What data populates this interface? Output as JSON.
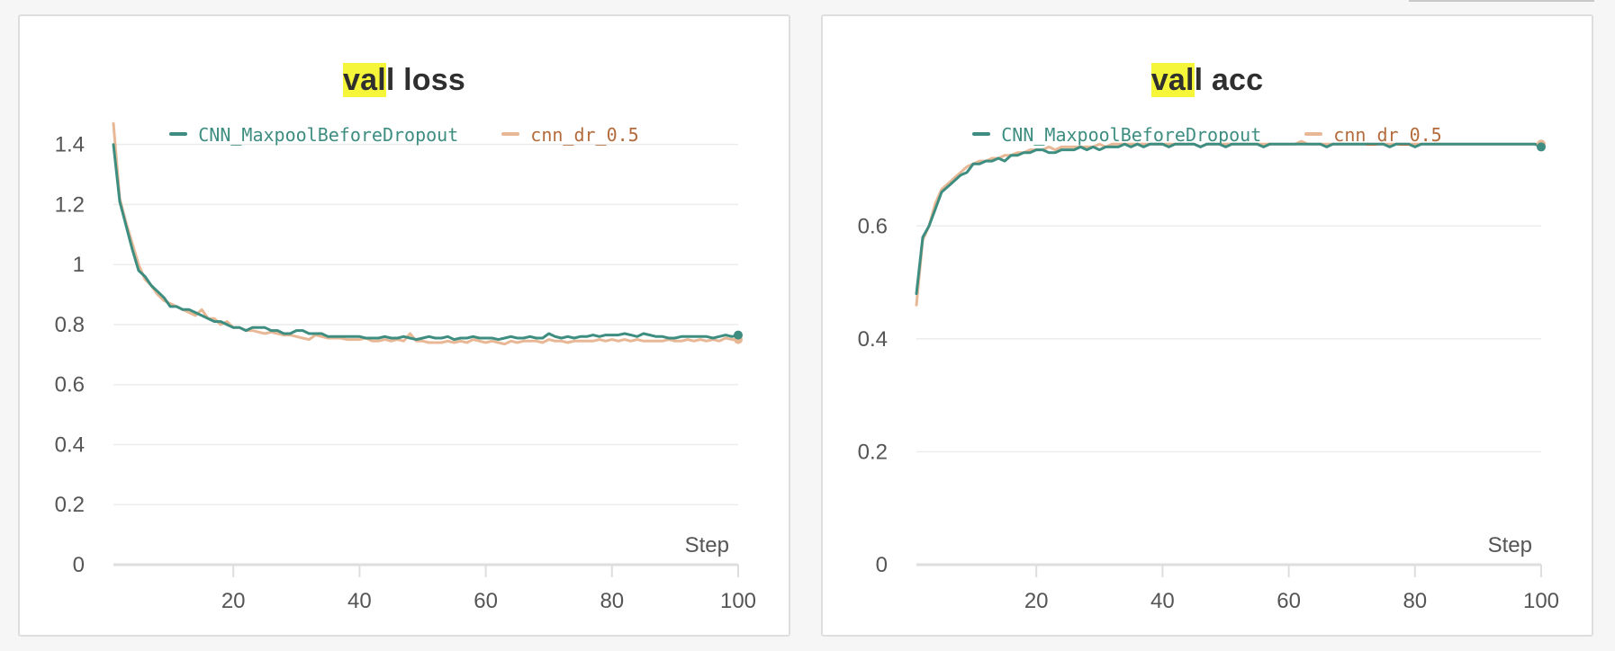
{
  "colors": {
    "series_a": "#3d8d80",
    "series_b": "#e8b896",
    "series_b_text": "#b36b3c",
    "grid": "#ececec",
    "axis": "#dedede"
  },
  "chart_data": [
    {
      "type": "line",
      "title_highlight": "val",
      "title_rest": "l loss",
      "xlabel": "Step",
      "ylabel": "",
      "xlim": [
        1,
        100
      ],
      "ylim": [
        0,
        1.42
      ],
      "x_ticks": [
        20,
        40,
        60,
        80,
        100
      ],
      "y_ticks": [
        0,
        0.2,
        0.4,
        0.6,
        0.8,
        1,
        1.2,
        1.4
      ],
      "y_tick_labels": [
        "0",
        "0.2",
        "0.4",
        "0.6",
        "0.8",
        "1",
        "1.2",
        "1.4"
      ],
      "grid": true,
      "legend": "top-center",
      "x": [
        1,
        2,
        3,
        4,
        5,
        6,
        7,
        8,
        9,
        10,
        11,
        12,
        13,
        14,
        15,
        16,
        17,
        18,
        19,
        20,
        21,
        22,
        23,
        24,
        25,
        26,
        27,
        28,
        29,
        30,
        31,
        32,
        33,
        34,
        35,
        36,
        37,
        38,
        39,
        40,
        41,
        42,
        43,
        44,
        45,
        46,
        47,
        48,
        49,
        50,
        51,
        52,
        53,
        54,
        55,
        56,
        57,
        58,
        59,
        60,
        61,
        62,
        63,
        64,
        65,
        66,
        67,
        68,
        69,
        70,
        71,
        72,
        73,
        74,
        75,
        76,
        77,
        78,
        79,
        80,
        81,
        82,
        83,
        84,
        85,
        86,
        87,
        88,
        89,
        90,
        91,
        92,
        93,
        94,
        95,
        96,
        97,
        98,
        99,
        100
      ],
      "series": [
        {
          "name": "CNN_MaxpoolBeforeDropout",
          "values": [
            1.4,
            1.21,
            1.13,
            1.05,
            0.98,
            0.96,
            0.93,
            0.91,
            0.89,
            0.86,
            0.86,
            0.85,
            0.85,
            0.84,
            0.83,
            0.82,
            0.81,
            0.81,
            0.8,
            0.79,
            0.79,
            0.78,
            0.79,
            0.79,
            0.79,
            0.78,
            0.78,
            0.77,
            0.77,
            0.78,
            0.78,
            0.77,
            0.77,
            0.77,
            0.76,
            0.76,
            0.76,
            0.76,
            0.76,
            0.76,
            0.755,
            0.755,
            0.755,
            0.76,
            0.755,
            0.755,
            0.76,
            0.755,
            0.75,
            0.755,
            0.76,
            0.755,
            0.755,
            0.76,
            0.75,
            0.755,
            0.755,
            0.76,
            0.755,
            0.755,
            0.755,
            0.75,
            0.755,
            0.76,
            0.755,
            0.755,
            0.76,
            0.755,
            0.755,
            0.77,
            0.76,
            0.755,
            0.76,
            0.755,
            0.76,
            0.76,
            0.765,
            0.76,
            0.765,
            0.765,
            0.765,
            0.77,
            0.765,
            0.76,
            0.77,
            0.765,
            0.76,
            0.76,
            0.755,
            0.755,
            0.76,
            0.76,
            0.76,
            0.76,
            0.76,
            0.755,
            0.76,
            0.765,
            0.76,
            0.765
          ]
        },
        {
          "name": "cnn_dr_0.5",
          "values": [
            1.47,
            1.22,
            1.14,
            1.07,
            1.0,
            0.95,
            0.93,
            0.9,
            0.88,
            0.87,
            0.86,
            0.85,
            0.84,
            0.83,
            0.85,
            0.82,
            0.82,
            0.8,
            0.81,
            0.79,
            0.79,
            0.78,
            0.78,
            0.775,
            0.77,
            0.775,
            0.77,
            0.765,
            0.765,
            0.76,
            0.755,
            0.75,
            0.765,
            0.76,
            0.755,
            0.755,
            0.755,
            0.75,
            0.75,
            0.75,
            0.755,
            0.745,
            0.745,
            0.75,
            0.745,
            0.75,
            0.745,
            0.77,
            0.745,
            0.745,
            0.74,
            0.74,
            0.74,
            0.745,
            0.74,
            0.745,
            0.74,
            0.75,
            0.745,
            0.74,
            0.745,
            0.74,
            0.735,
            0.745,
            0.74,
            0.745,
            0.745,
            0.745,
            0.74,
            0.75,
            0.745,
            0.745,
            0.74,
            0.745,
            0.745,
            0.745,
            0.745,
            0.75,
            0.745,
            0.75,
            0.745,
            0.75,
            0.745,
            0.75,
            0.745,
            0.745,
            0.745,
            0.745,
            0.75,
            0.745,
            0.745,
            0.75,
            0.745,
            0.75,
            0.745,
            0.75,
            0.745,
            0.755,
            0.75,
            0.75
          ]
        }
      ]
    },
    {
      "type": "line",
      "title_highlight": "val",
      "title_rest": "l acc",
      "xlabel": "Step",
      "ylabel": "",
      "xlim": [
        1,
        100
      ],
      "ylim": [
        0,
        0.755
      ],
      "x_ticks": [
        20,
        40,
        60,
        80,
        100
      ],
      "y_ticks": [
        0,
        0.2,
        0.4,
        0.6
      ],
      "y_tick_labels": [
        "0",
        "0.2",
        "0.4",
        "0.6"
      ],
      "grid": true,
      "legend": "top-center",
      "x": [
        1,
        2,
        3,
        4,
        5,
        6,
        7,
        8,
        9,
        10,
        11,
        12,
        13,
        14,
        15,
        16,
        17,
        18,
        19,
        20,
        21,
        22,
        23,
        24,
        25,
        26,
        27,
        28,
        29,
        30,
        31,
        32,
        33,
        34,
        35,
        36,
        37,
        38,
        39,
        40,
        41,
        42,
        43,
        44,
        45,
        46,
        47,
        48,
        49,
        50,
        51,
        52,
        53,
        54,
        55,
        56,
        57,
        58,
        59,
        60,
        61,
        62,
        63,
        64,
        65,
        66,
        67,
        68,
        69,
        70,
        71,
        72,
        73,
        74,
        75,
        76,
        77,
        78,
        79,
        80,
        81,
        82,
        83,
        84,
        85,
        86,
        87,
        88,
        89,
        90,
        91,
        92,
        93,
        94,
        95,
        96,
        97,
        98,
        99,
        100
      ],
      "series": [
        {
          "name": "CNN_MaxpoolBeforeDropout",
          "values": [
            0.48,
            0.58,
            0.6,
            0.63,
            0.66,
            0.67,
            0.68,
            0.69,
            0.695,
            0.71,
            0.71,
            0.715,
            0.715,
            0.72,
            0.715,
            0.725,
            0.725,
            0.73,
            0.73,
            0.735,
            0.735,
            0.73,
            0.73,
            0.735,
            0.735,
            0.735,
            0.74,
            0.735,
            0.74,
            0.735,
            0.74,
            0.74,
            0.74,
            0.745,
            0.74,
            0.745,
            0.74,
            0.745,
            0.745,
            0.745,
            0.74,
            0.745,
            0.745,
            0.745,
            0.745,
            0.74,
            0.745,
            0.745,
            0.745,
            0.74,
            0.745,
            0.745,
            0.745,
            0.745,
            0.745,
            0.74,
            0.745,
            0.745,
            0.745,
            0.745,
            0.745,
            0.745,
            0.745,
            0.745,
            0.745,
            0.74,
            0.745,
            0.745,
            0.745,
            0.745,
            0.745,
            0.745,
            0.745,
            0.745,
            0.745,
            0.74,
            0.745,
            0.745,
            0.745,
            0.74,
            0.745,
            0.745,
            0.745,
            0.745,
            0.745,
            0.745,
            0.745,
            0.745,
            0.745,
            0.745,
            0.745,
            0.745,
            0.745,
            0.745,
            0.745,
            0.745,
            0.745,
            0.745,
            0.745,
            0.74
          ]
        },
        {
          "name": "cnn_dr_0.5",
          "values": [
            0.46,
            0.575,
            0.6,
            0.64,
            0.665,
            0.675,
            0.685,
            0.695,
            0.705,
            0.71,
            0.715,
            0.715,
            0.72,
            0.72,
            0.725,
            0.725,
            0.73,
            0.73,
            0.735,
            0.735,
            0.735,
            0.74,
            0.735,
            0.74,
            0.74,
            0.74,
            0.74,
            0.74,
            0.74,
            0.745,
            0.74,
            0.745,
            0.745,
            0.745,
            0.745,
            0.745,
            0.745,
            0.745,
            0.745,
            0.745,
            0.745,
            0.745,
            0.745,
            0.745,
            0.745,
            0.74,
            0.745,
            0.745,
            0.745,
            0.745,
            0.745,
            0.745,
            0.745,
            0.745,
            0.745,
            0.745,
            0.745,
            0.745,
            0.745,
            0.745,
            0.745,
            0.75,
            0.745,
            0.745,
            0.745,
            0.745,
            0.745,
            0.745,
            0.745,
            0.745,
            0.745,
            0.745,
            0.745,
            0.745,
            0.745,
            0.745,
            0.745,
            0.745,
            0.745,
            0.745,
            0.745,
            0.745,
            0.745,
            0.745,
            0.745,
            0.745,
            0.745,
            0.745,
            0.745,
            0.745,
            0.745,
            0.745,
            0.745,
            0.745,
            0.745,
            0.745,
            0.745,
            0.745,
            0.745,
            0.745
          ]
        }
      ]
    }
  ]
}
